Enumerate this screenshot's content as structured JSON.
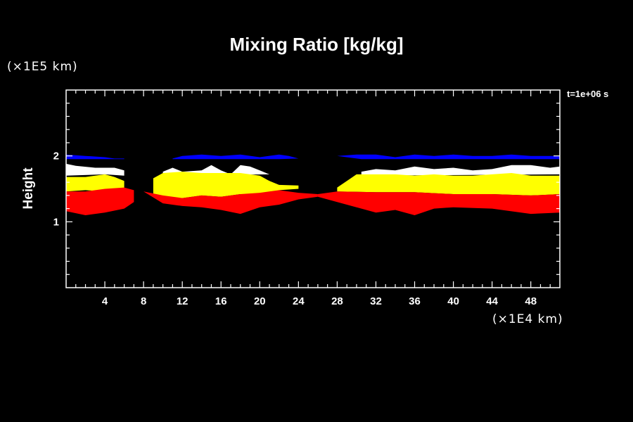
{
  "chart_data": {
    "type": "area",
    "title": "Mixing Ratio [kg/kg]",
    "ylabel": "Height",
    "xlabel": "",
    "x_unit": "(×1E4 km)",
    "y_unit": "(×1E5 km)",
    "time_label": "t=1e+06 s",
    "xlim": [
      0,
      51
    ],
    "ylim": [
      0,
      3
    ],
    "x_ticks": [
      4,
      8,
      12,
      16,
      20,
      24,
      28,
      32,
      36,
      40,
      44,
      48
    ],
    "y_ticks": [
      1,
      2
    ],
    "grid": false,
    "colors": {
      "background": "#000000",
      "axis": "#ffffff",
      "level_1": "#ff0000",
      "level_2": "#ffff00",
      "level_3": "#ffffff",
      "level_4": "#0000ff"
    },
    "series": [
      {
        "color": "#0000ff",
        "segments": [
          {
            "bottom": [
              [
                0,
                1.95
              ],
              [
                4,
                1.95
              ],
              [
                6,
                1.95
              ],
              [
                6,
                1.95
              ]
            ],
            "top": [
              [
                0,
                2.02
              ],
              [
                2,
                2.0
              ],
              [
                4,
                1.98
              ],
              [
                5,
                1.96
              ],
              [
                6,
                1.96
              ]
            ]
          },
          {
            "bottom": [
              [
                11,
                1.95
              ],
              [
                20,
                1.95
              ],
              [
                22,
                1.95
              ]
            ],
            "top": [
              [
                11,
                1.96
              ],
              [
                12,
                2.0
              ],
              [
                14,
                2.02
              ],
              [
                16,
                2.0
              ],
              [
                18,
                2.02
              ],
              [
                20,
                1.98
              ],
              [
                22,
                2.02
              ],
              [
                23,
                2.0
              ],
              [
                24,
                1.96
              ]
            ]
          },
          {
            "bottom": [
              [
                30.5,
                1.95
              ],
              [
                41,
                1.95
              ],
              [
                51,
                1.95
              ]
            ],
            "top": [
              [
                28,
                2.0
              ],
              [
                30,
                2.02
              ],
              [
                32,
                2.02
              ],
              [
                34,
                1.98
              ],
              [
                36,
                2.02
              ],
              [
                38,
                2.0
              ],
              [
                40,
                2.02
              ],
              [
                42,
                2.0
              ],
              [
                44,
                2.0
              ],
              [
                46,
                2.02
              ],
              [
                48,
                2.0
              ],
              [
                51,
                2.0
              ]
            ]
          }
        ]
      },
      {
        "color": "#ffffff",
        "segments": [
          {
            "bottom": [
              [
                0,
                1.7
              ],
              [
                4,
                1.72
              ],
              [
                6,
                1.7
              ]
            ],
            "top": [
              [
                0,
                1.88
              ],
              [
                1,
                1.85
              ],
              [
                3,
                1.82
              ],
              [
                5,
                1.82
              ],
              [
                6,
                1.78
              ]
            ]
          },
          {
            "bottom": [
              [
                10,
                1.7
              ],
              [
                21,
                1.72
              ]
            ],
            "top": [
              [
                10,
                1.76
              ],
              [
                11,
                1.82
              ],
              [
                12,
                1.76
              ],
              [
                14,
                1.78
              ],
              [
                15,
                1.86
              ],
              [
                16,
                1.78
              ],
              [
                17,
                1.72
              ],
              [
                18,
                1.86
              ],
              [
                19,
                1.84
              ],
              [
                20,
                1.78
              ],
              [
                21,
                1.72
              ]
            ]
          },
          {
            "bottom": [
              [
                30.5,
                1.7
              ],
              [
                51,
                1.72
              ]
            ],
            "top": [
              [
                30.5,
                1.76
              ],
              [
                32,
                1.8
              ],
              [
                34,
                1.78
              ],
              [
                36,
                1.84
              ],
              [
                38,
                1.8
              ],
              [
                40,
                1.82
              ],
              [
                42,
                1.78
              ],
              [
                44,
                1.8
              ],
              [
                46,
                1.86
              ],
              [
                48,
                1.86
              ],
              [
                50,
                1.82
              ],
              [
                51,
                1.84
              ]
            ]
          }
        ]
      },
      {
        "color": "#ffff00",
        "segments": [
          {
            "bottom": [
              [
                0,
                1.46
              ],
              [
                2,
                1.48
              ],
              [
                4,
                1.46
              ],
              [
                6,
                1.5
              ]
            ],
            "top": [
              [
                0,
                1.68
              ],
              [
                2,
                1.68
              ],
              [
                4,
                1.72
              ],
              [
                5,
                1.68
              ],
              [
                6,
                1.62
              ]
            ]
          },
          {
            "bottom": [
              [
                9,
                1.4
              ],
              [
                11,
                1.34
              ],
              [
                14,
                1.4
              ],
              [
                16,
                1.38
              ],
              [
                18,
                1.42
              ],
              [
                20,
                1.4
              ],
              [
                22,
                1.48
              ],
              [
                24,
                1.5
              ]
            ],
            "top": [
              [
                9,
                1.66
              ],
              [
                10,
                1.74
              ],
              [
                12,
                1.76
              ],
              [
                14,
                1.74
              ],
              [
                16,
                1.74
              ],
              [
                18,
                1.74
              ],
              [
                20,
                1.7
              ],
              [
                21,
                1.62
              ],
              [
                22,
                1.56
              ],
              [
                24,
                1.55
              ]
            ]
          },
          {
            "bottom": [
              [
                28,
                1.46
              ],
              [
                32,
                1.45
              ],
              [
                36,
                1.45
              ],
              [
                40,
                1.42
              ],
              [
                44,
                1.42
              ],
              [
                48,
                1.4
              ],
              [
                51,
                1.42
              ]
            ],
            "top": [
              [
                28,
                1.52
              ],
              [
                29,
                1.62
              ],
              [
                30,
                1.72
              ],
              [
                32,
                1.72
              ],
              [
                34,
                1.72
              ],
              [
                36,
                1.7
              ],
              [
                38,
                1.72
              ],
              [
                40,
                1.7
              ],
              [
                42,
                1.7
              ],
              [
                44,
                1.72
              ],
              [
                46,
                1.74
              ],
              [
                48,
                1.7
              ],
              [
                51,
                1.7
              ]
            ]
          }
        ]
      },
      {
        "color": "#ff0000",
        "segments": [
          {
            "bottom": [
              [
                0,
                1.16
              ],
              [
                2,
                1.1
              ],
              [
                4,
                1.14
              ],
              [
                6,
                1.2
              ],
              [
                7,
                1.3
              ]
            ],
            "top": [
              [
                0,
                1.46
              ],
              [
                2,
                1.46
              ],
              [
                4,
                1.5
              ],
              [
                6,
                1.52
              ],
              [
                7,
                1.48
              ]
            ]
          },
          {
            "bottom": [
              [
                8,
                1.46
              ],
              [
                10,
                1.28
              ],
              [
                12,
                1.24
              ],
              [
                14,
                1.22
              ],
              [
                16,
                1.18
              ],
              [
                18,
                1.12
              ],
              [
                20,
                1.22
              ],
              [
                22,
                1.26
              ],
              [
                24,
                1.34
              ],
              [
                26,
                1.38
              ]
            ],
            "top": [
              [
                8,
                1.46
              ],
              [
                10,
                1.4
              ],
              [
                12,
                1.36
              ],
              [
                14,
                1.4
              ],
              [
                16,
                1.38
              ],
              [
                18,
                1.42
              ],
              [
                20,
                1.44
              ],
              [
                22,
                1.48
              ],
              [
                24,
                1.44
              ],
              [
                26,
                1.42
              ]
            ]
          },
          {
            "bottom": [
              [
                26,
                1.38
              ],
              [
                28,
                1.3
              ],
              [
                30,
                1.22
              ],
              [
                32,
                1.14
              ],
              [
                34,
                1.18
              ],
              [
                36,
                1.1
              ],
              [
                38,
                1.2
              ],
              [
                40,
                1.22
              ],
              [
                44,
                1.2
              ],
              [
                48,
                1.12
              ],
              [
                51,
                1.14
              ]
            ],
            "top": [
              [
                26,
                1.42
              ],
              [
                28,
                1.46
              ],
              [
                32,
                1.45
              ],
              [
                36,
                1.45
              ],
              [
                40,
                1.42
              ],
              [
                44,
                1.42
              ],
              [
                48,
                1.4
              ],
              [
                51,
                1.42
              ]
            ]
          }
        ]
      }
    ]
  }
}
